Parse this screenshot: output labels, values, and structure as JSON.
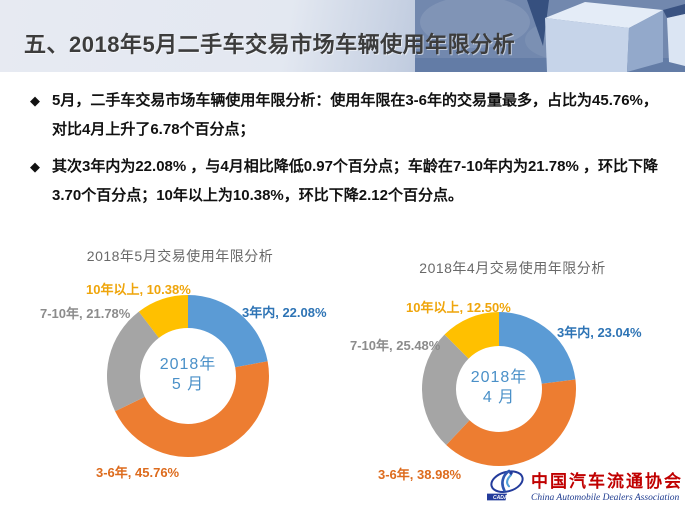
{
  "header": {
    "title": "五、2018年5月二手车交易市场车辆使用年限分析"
  },
  "bullet_marker": "◆",
  "bullets": [
    "5月，二手车交易市场车辆使用年限分析：使用年限在3-6年的交易量最多，占比为45.76%，对比4月上升了6.78个百分点；",
    "其次3年内为22.08% ，与4月相比降低0.97个百分点；车龄在7-10年内为21.78% ，环比下降3.70个百分点；10年以上为10.38%，环比下降2.12个百分点。"
  ],
  "chart_data": [
    {
      "type": "pie",
      "donut": true,
      "title": "2018年5月交易使用年限分析",
      "center_lines": [
        "2018年",
        "5 月"
      ],
      "categories": [
        "3年内",
        "3-6年",
        "7-10年",
        "10年以上"
      ],
      "values": [
        22.08,
        45.76,
        21.78,
        10.38
      ],
      "unit": "%",
      "direction": "clockwise",
      "start_angle_deg": 0,
      "legend": "none",
      "colors": [
        "#5B9BD5",
        "#ED7D31",
        "#A5A5A5",
        "#FFC000"
      ],
      "label_colors": [
        "#2E74B5",
        "#DD6B1D",
        "#8C8C8C",
        "#EFA50B"
      ],
      "center_text_color": "#4A90C8",
      "labels": [
        "3年内, 22.08%",
        "3-6年, 45.76%",
        "7-10年, 21.78%",
        "10年以上, 10.38%"
      ]
    },
    {
      "type": "pie",
      "donut": true,
      "title": "2018年4月交易使用年限分析",
      "center_lines": [
        "2018年",
        "4 月"
      ],
      "categories": [
        "3年内",
        "3-6年",
        "7-10年",
        "10年以上"
      ],
      "values": [
        23.04,
        38.98,
        25.48,
        12.5
      ],
      "unit": "%",
      "direction": "clockwise",
      "start_angle_deg": 0,
      "legend": "none",
      "colors": [
        "#5B9BD5",
        "#ED7D31",
        "#A5A5A5",
        "#FFC000"
      ],
      "label_colors": [
        "#2E74B5",
        "#DD6B1D",
        "#8C8C8C",
        "#EFA50B"
      ],
      "center_text_color": "#4A90C8",
      "labels": [
        "3年内, 23.04%",
        "3-6年, 38.98%",
        "7-10年, 25.48%",
        "10年以上, 12.50%"
      ]
    }
  ],
  "logo": {
    "acronym": "CADA",
    "name_cn": "中国汽车流通协会",
    "name_en": "China Automobile Dealers Association",
    "colors": {
      "emblem_blue": "#233B9B",
      "name_red": "#C00000",
      "en_blue": "#1E3B8F"
    }
  }
}
